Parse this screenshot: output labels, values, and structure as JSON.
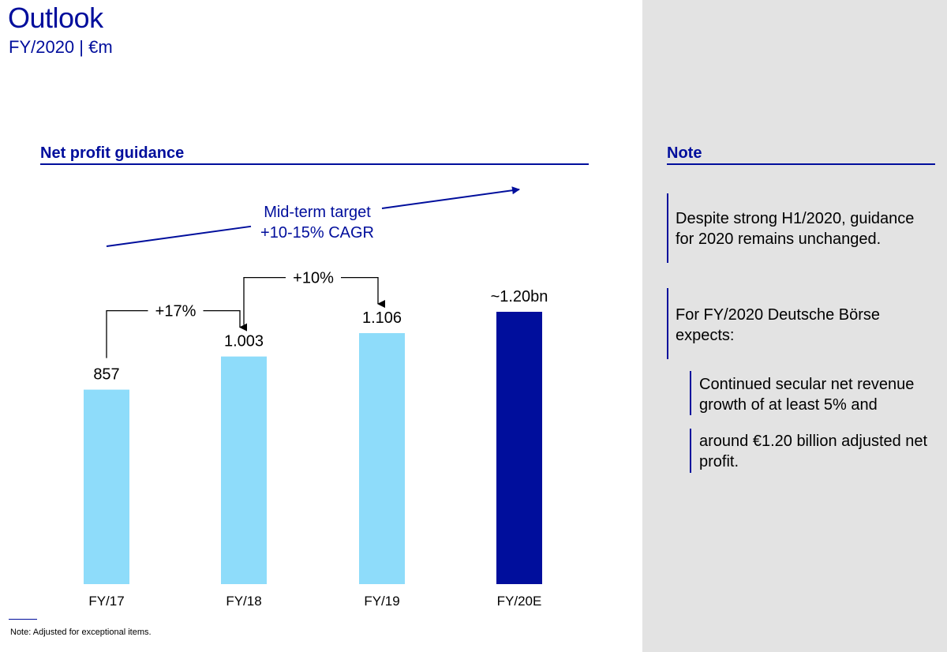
{
  "header": {
    "title": "Outlook",
    "subtitle": "FY/2020 | €m"
  },
  "chart_section": {
    "title": "Net profit guidance"
  },
  "note_section": {
    "title": "Note",
    "items": [
      "Despite strong H1/2020, guidance for 2020 remains unchanged.",
      "For FY/2020 Deutsche Börse expects:"
    ],
    "sub_items": [
      "Continued secular net revenue growth of at least 5% and",
      "around €1.20 billion adjusted net profit."
    ]
  },
  "footnote": "Note: Adjusted for exceptional items.",
  "colors": {
    "actual_bar": "#8edcfa",
    "estimate_bar": "#000e9c",
    "accent": "#000e9c",
    "panel": "#e3e3e3"
  },
  "chart_data": {
    "type": "bar",
    "title": "Net profit guidance",
    "unit": "€m",
    "categories": [
      "FY/17",
      "FY/18",
      "FY/19",
      "FY/20E"
    ],
    "values": [
      857,
      1003,
      1106,
      1200
    ],
    "value_labels": [
      "857",
      "1.003",
      "1.106",
      "~1.20bn"
    ],
    "estimate_flags": [
      false,
      false,
      false,
      true
    ],
    "growth_annotations": [
      {
        "from": "FY/17",
        "to": "FY/18",
        "label": "+17%"
      },
      {
        "from": "FY/18",
        "to": "FY/19",
        "label": "+10%"
      }
    ],
    "target_annotation": {
      "line1": "Mid-term target",
      "line2": "+10-15% CAGR"
    },
    "ylim": [
      0,
      1200
    ],
    "xlabel": "",
    "ylabel": "",
    "grid": false
  }
}
